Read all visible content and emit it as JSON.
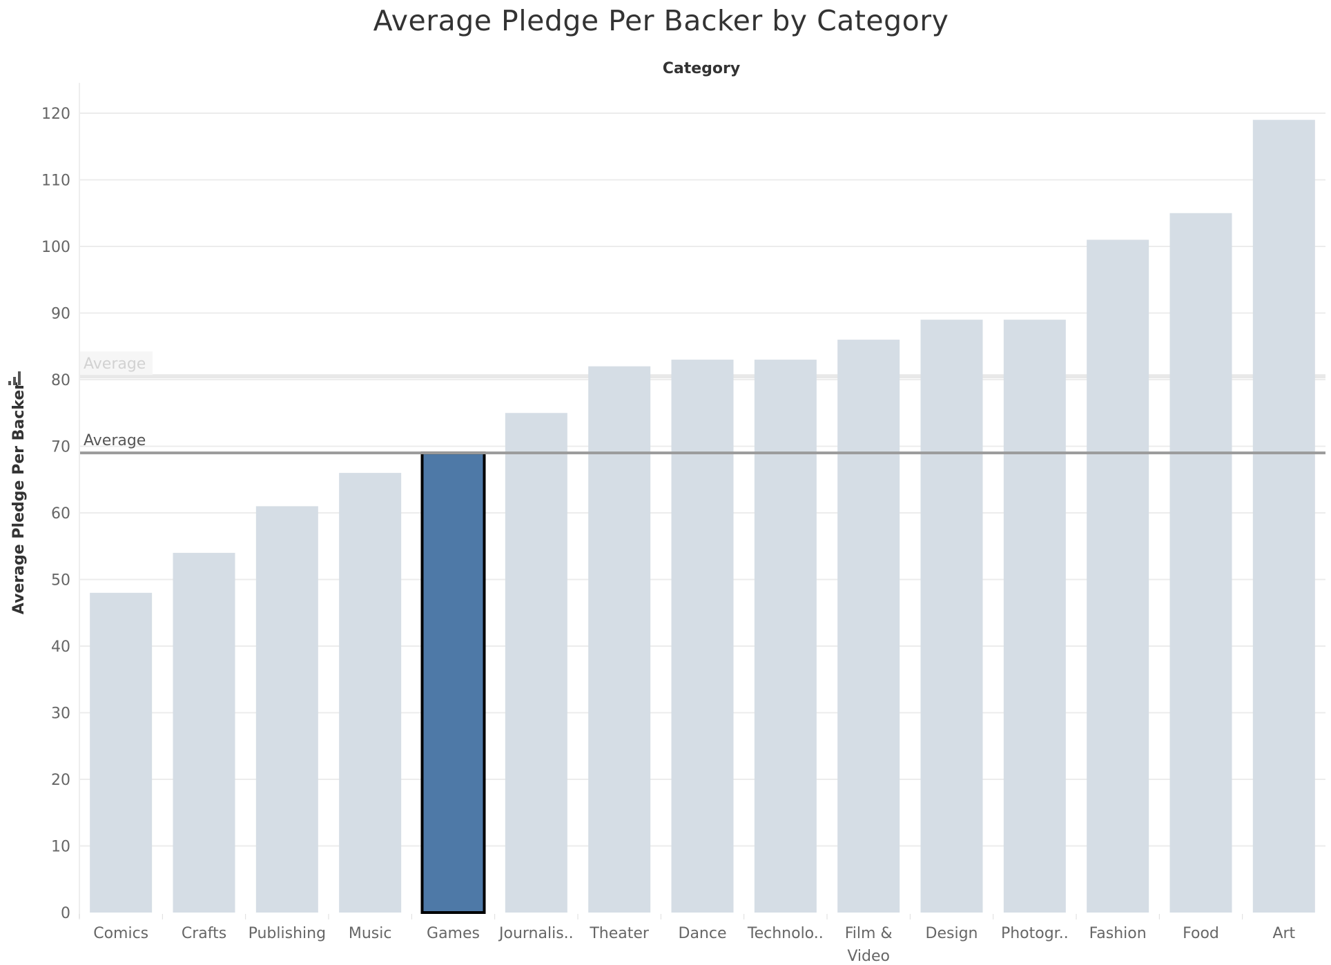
{
  "chart_data": {
    "type": "bar",
    "title": "Average Pledge Per Backer by Category",
    "column_header": "Category",
    "ylabel": "Average Pledge Per Backer",
    "ylim": [
      0,
      125
    ],
    "yticks": [
      0,
      10,
      20,
      30,
      40,
      50,
      60,
      70,
      80,
      90,
      100,
      110,
      120
    ],
    "grid": true,
    "categories": [
      {
        "label": "Comics",
        "lines": [
          "Comics"
        ],
        "value": 48
      },
      {
        "label": "Crafts",
        "lines": [
          "Crafts"
        ],
        "value": 54
      },
      {
        "label": "Publishing",
        "lines": [
          "Publishing"
        ],
        "value": 61
      },
      {
        "label": "Music",
        "lines": [
          "Music"
        ],
        "value": 66
      },
      {
        "label": "Games",
        "lines": [
          "Games"
        ],
        "value": 69,
        "highlighted": true
      },
      {
        "label": "Journalis..",
        "lines": [
          "Journalis.."
        ],
        "value": 75
      },
      {
        "label": "Theater",
        "lines": [
          "Theater"
        ],
        "value": 82
      },
      {
        "label": "Dance",
        "lines": [
          "Dance"
        ],
        "value": 83
      },
      {
        "label": "Technolo..",
        "lines": [
          "Technolo.."
        ],
        "value": 83
      },
      {
        "label": "Film & Video",
        "lines": [
          "Film &",
          "Video"
        ],
        "value": 86
      },
      {
        "label": "Design",
        "lines": [
          "Design"
        ],
        "value": 89
      },
      {
        "label": "Photogr..",
        "lines": [
          "Photogr.."
        ],
        "value": 89
      },
      {
        "label": "Fashion",
        "lines": [
          "Fashion"
        ],
        "value": 101
      },
      {
        "label": "Food",
        "lines": [
          "Food"
        ],
        "value": 105
      },
      {
        "label": "Art",
        "lines": [
          "Art"
        ],
        "value": 119
      }
    ],
    "reference_lines": [
      {
        "label": "Average",
        "value": 80.5,
        "style": "faded"
      },
      {
        "label": "Average",
        "value": 69,
        "style": "solid"
      }
    ],
    "colors": {
      "bar": "#d5dde5",
      "highlight_bar": "#4e79a7",
      "highlight_border": "#000000",
      "reference_line": "#9b9b9b",
      "faded_reference": "#e8e8e8",
      "grid": "#ececec"
    },
    "axis_icon": "sort-descending-icon"
  }
}
